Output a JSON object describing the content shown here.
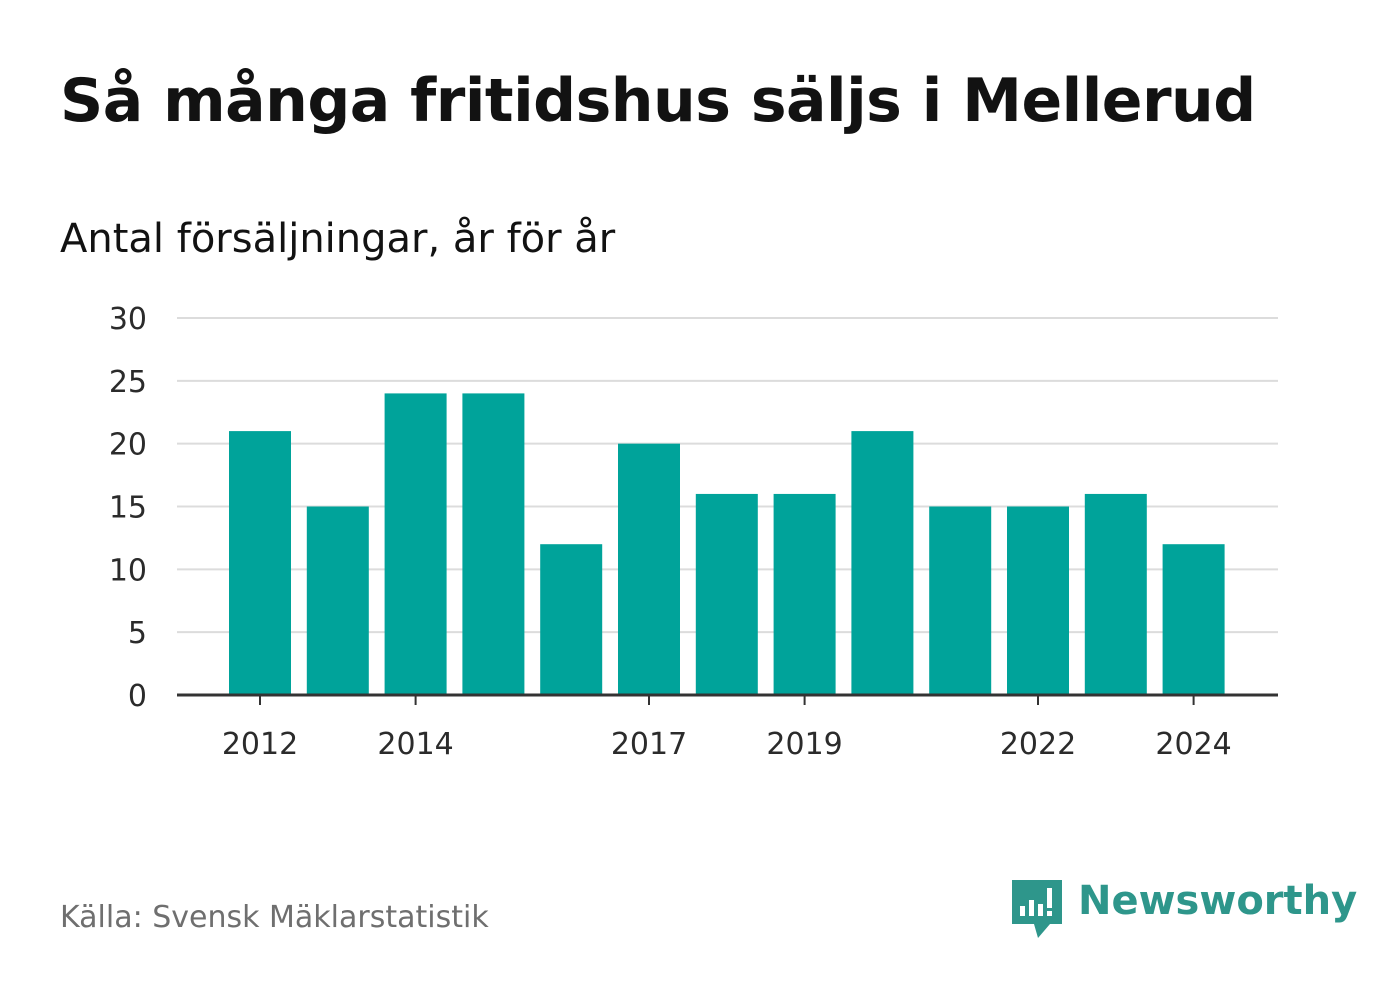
{
  "title": "Så många fritidshus säljs i Mellerud",
  "subtitle": "Antal försäljningar, år för år",
  "source": "Källa: Svensk Mäklarstatistik",
  "brand": {
    "name": "Newsworthy",
    "color": "#2e968b",
    "icon": "newsworthy-logo-icon"
  },
  "colors": {
    "bar": "#00a39a",
    "grid": "#dcdcdc",
    "axis": "#333333"
  },
  "chart_data": {
    "type": "bar",
    "title": "Så många fritidshus säljs i Mellerud",
    "subtitle": "Antal försäljningar, år för år",
    "xlabel": "",
    "ylabel": "",
    "categories": [
      "2012",
      "2013",
      "2014",
      "2015",
      "2016",
      "2017",
      "2018",
      "2019",
      "2020",
      "2021",
      "2022",
      "2023",
      "2024"
    ],
    "x_tick_labels": [
      "2012",
      "2014",
      "2017",
      "2019",
      "2022",
      "2024"
    ],
    "values": [
      21,
      15,
      24,
      24,
      12,
      20,
      16,
      16,
      21,
      15,
      15,
      16,
      12
    ],
    "ylim": [
      0,
      30
    ],
    "yticks": [
      0,
      5,
      10,
      15,
      20,
      25,
      30
    ],
    "grid": true,
    "legend": "none"
  }
}
